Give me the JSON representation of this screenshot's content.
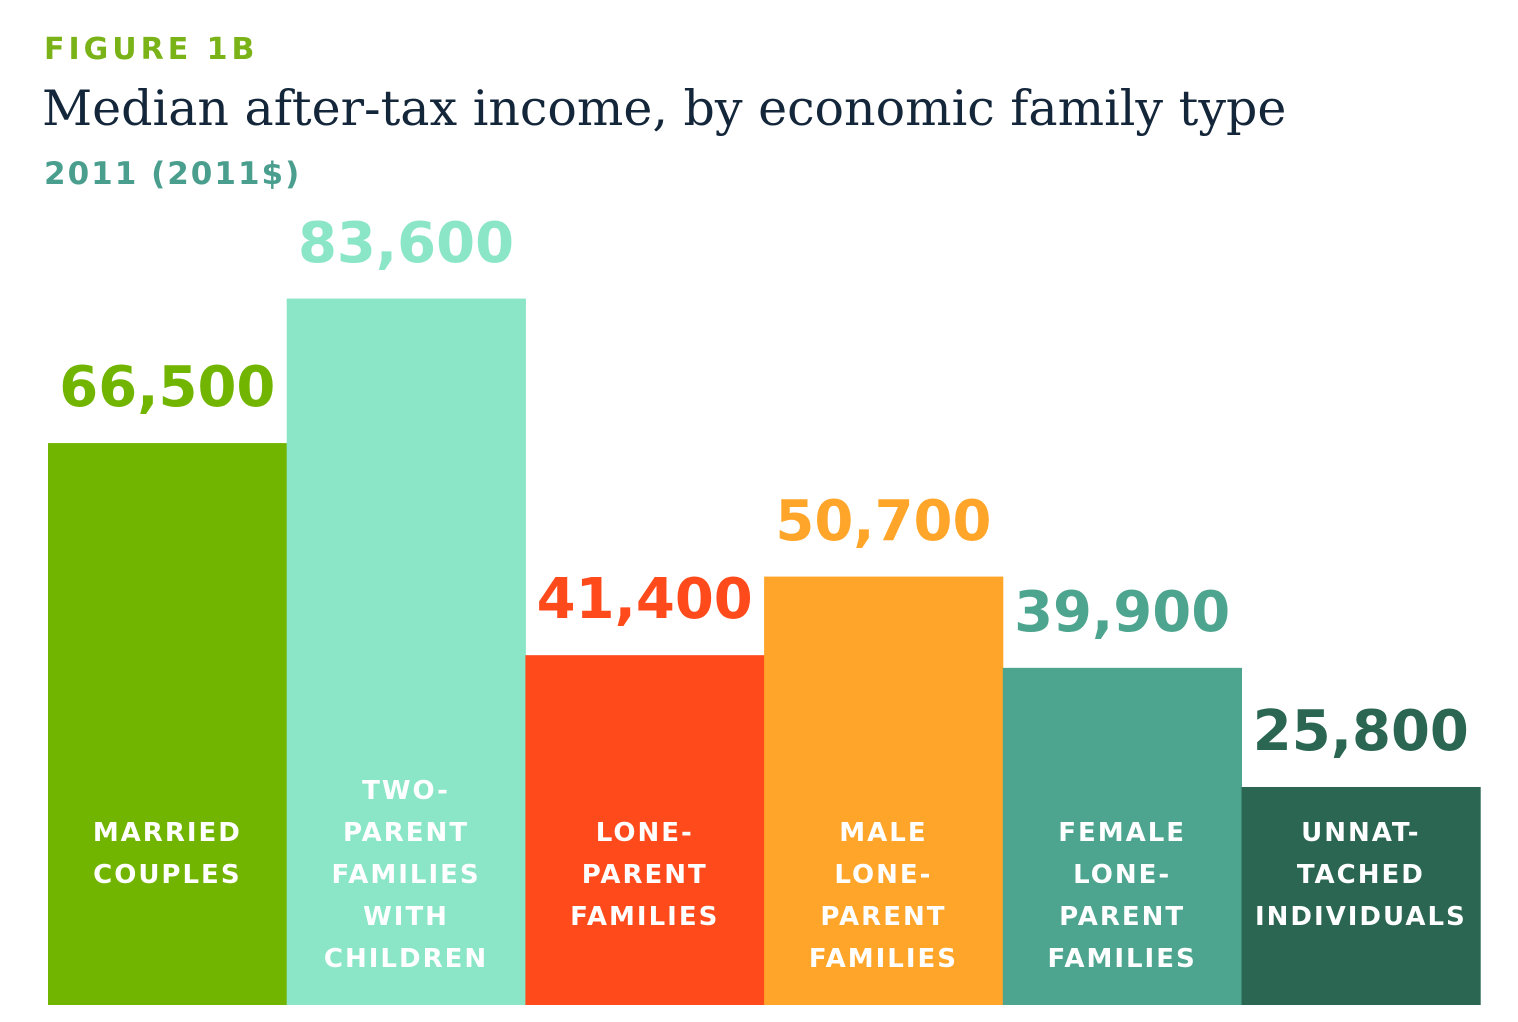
{
  "chart_data": {
    "type": "bar",
    "kicker": "FIGURE 1B",
    "title": "Median after-tax income, by economic family type",
    "subtitle": "2011 (2011$)",
    "categories": [
      "MARRIED\nCOUPLES",
      "TWO-\nPARENT\nFAMILIES\nWITH\nCHILDREN",
      "LONE-\nPARENT\nFAMILIES",
      "MALE\nLONE-\nPARENT\nFAMILIES",
      "FEMALE\nLONE-\nPARENT\nFAMILIES",
      "UNNAT-\nTACHED\nINDIVIDUALS"
    ],
    "values": [
      66500,
      83600,
      41400,
      50700,
      39900,
      25800
    ],
    "value_labels": [
      "66,500",
      "83,600",
      "41,400",
      "50,700",
      "39,900",
      "25,800"
    ],
    "colors": [
      "#72b500",
      "#8ae6c7",
      "#ff4a1c",
      "#ffa52a",
      "#4ea58f",
      "#2a6651"
    ]
  }
}
